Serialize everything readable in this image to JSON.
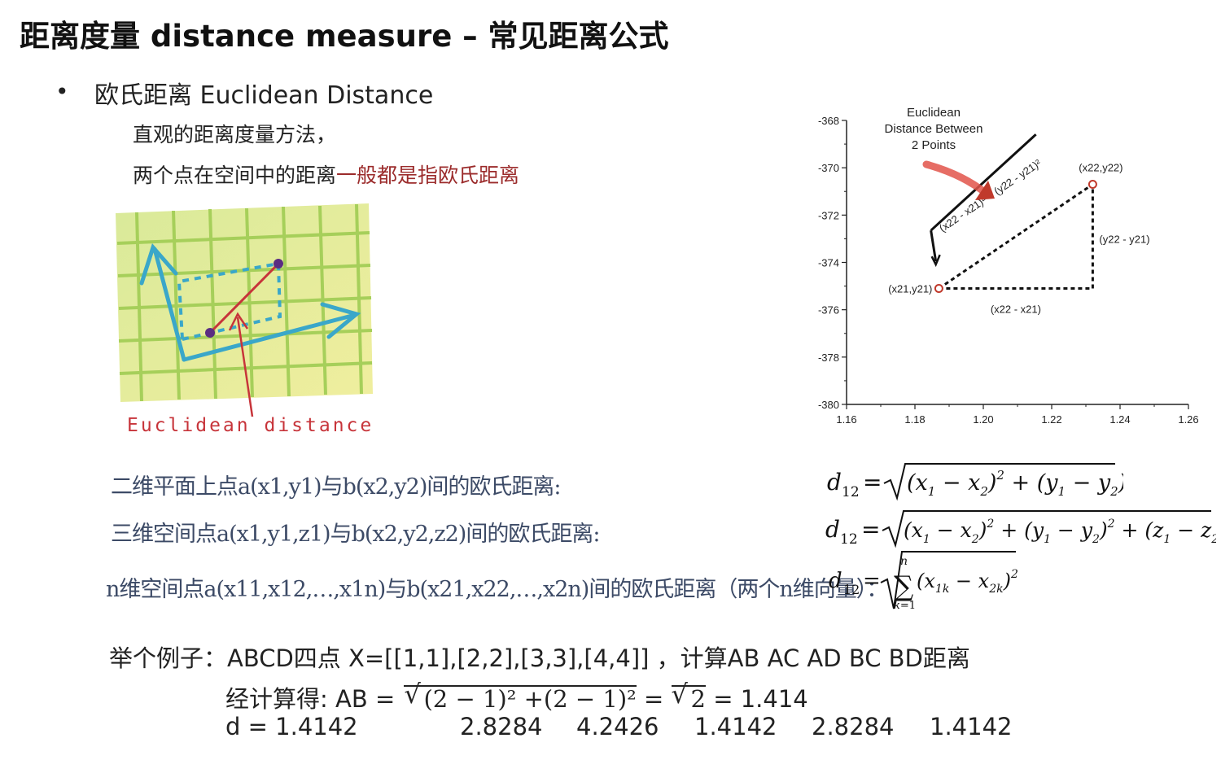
{
  "title": "距离度量 distance measure – 常见距离公式",
  "bullet": {
    "dot": "•",
    "text": "欧氏距离 Euclidean Distance"
  },
  "desc": {
    "line1": "直观的距离度量方法，",
    "line2_plain": "两个点在空间中的距离",
    "line2_highlight": "一般都是指欧氏距离"
  },
  "sketch": {
    "caption": "Euclidean distance"
  },
  "chart_data": {
    "type": "scatter",
    "title": "Euclidean Distance Between 2 Points",
    "title_lines": [
      "Euclidean",
      "Distance Between",
      "2 Points"
    ],
    "xlim": [
      1.16,
      1.26
    ],
    "ylim": [
      -380,
      -368
    ],
    "x_ticks": [
      "1.16",
      "1.18",
      "1.20",
      "1.22",
      "1.24",
      "1.26"
    ],
    "y_ticks": [
      "-368",
      "-370",
      "-372",
      "-374",
      "-376",
      "-378",
      "-380"
    ],
    "points": [
      {
        "label": "(x21,y21)",
        "x": 1.187,
        "y": -375.1
      },
      {
        "label": "(x22,y22)",
        "x": 1.232,
        "y": -370.7
      }
    ],
    "annotations": {
      "hypotenuse": "(x22 - x21)² + (y22 - y21)²",
      "vertical": "(y22 - y21)",
      "horizontal": "(x22 - x21)"
    },
    "accent_color": "#c0392b"
  },
  "formulas": {
    "f1_label": "二维平面上点a(x1,y1)与b(x2,y2)间的欧氏距离:",
    "f2_label": "三维空间点a(x1,y1,z1)与b(x2,y2,z2)间的欧氏距离:",
    "f3_label": "n维空间点a(x11,x12,…,x1n)与b(x21,x22,…,x2n)间的欧氏距离（两个n维向量）："
  },
  "example": {
    "title": "举个例子：ABCD四点 X=[[1,1],[2,2],[3,3],[4,4]] ，计算AB AC AD BC BD距离",
    "calc_prefix": "经计算得: AB = ",
    "calc_radicand": "(2 − 1)² +(2 − 1)²",
    "calc_mid": " = ",
    "calc_root2": "2",
    "calc_result": " = 1.414",
    "d_label": "d = 1.4142",
    "d_values": [
      "2.8284",
      "4.2426",
      "1.4142",
      "2.8284",
      "1.4142"
    ]
  }
}
